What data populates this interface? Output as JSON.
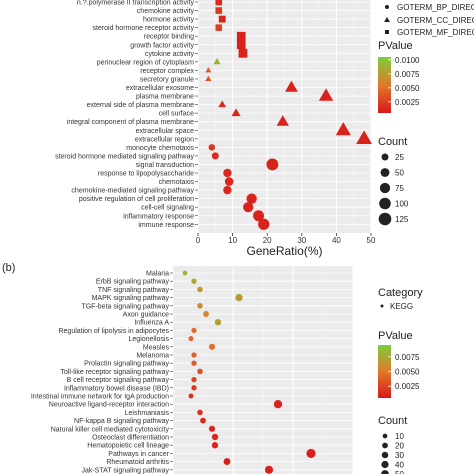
{
  "chart_data": [
    {
      "type": "scatter",
      "panel_label": "",
      "xlabel": "GeneRatio(%)",
      "xlim": [
        0,
        50
      ],
      "xticks": [
        0,
        10,
        20,
        30,
        40,
        50
      ],
      "terms": [
        "n.?.polymerase II transcription activity",
        "chemokine activity",
        "hormone activity",
        "steroid hormone receptor activity",
        "receptor binding",
        "growth factor activity",
        "cytokine activity",
        "perinuclear region of cytoplasm",
        "receptor complex",
        "secretory granule",
        "extracellular exosome",
        "plasma membrane",
        "external side of plasma membrane",
        "cell surface",
        "integral component of plasma membrane",
        "extracellular space",
        "extracellular region",
        "monocyte chemotaxis",
        "steroid hormone mediated signaling pathway",
        "signal transduction",
        "response to lipopolysaccharide",
        "chemotaxis",
        "chemokine-mediated signaling pathway",
        "positive regulation of cell proliferation",
        "cell-cell signaling",
        "inflammatory response",
        "immune response"
      ],
      "points": [
        {
          "x": 6,
          "category": "GOTERM_MF_DIRECT",
          "pvalue": 0.0015,
          "count": 18
        },
        {
          "x": 6,
          "category": "GOTERM_MF_DIRECT",
          "pvalue": 0.002,
          "count": 18
        },
        {
          "x": 7,
          "category": "GOTERM_MF_DIRECT",
          "pvalue": 0.001,
          "count": 20
        },
        {
          "x": 6,
          "category": "GOTERM_MF_DIRECT",
          "pvalue": 0.0025,
          "count": 17
        },
        {
          "x": 12.5,
          "category": "GOTERM_MF_DIRECT",
          "pvalue": 0.001,
          "count": 40
        },
        {
          "x": 12.5,
          "category": "GOTERM_MF_DIRECT",
          "pvalue": 0.001,
          "count": 40
        },
        {
          "x": 13,
          "category": "GOTERM_MF_DIRECT",
          "pvalue": 0.001,
          "count": 42
        },
        {
          "x": 5.5,
          "category": "GOTERM_CC_DIRECT",
          "pvalue": 0.0085,
          "count": 18
        },
        {
          "x": 3,
          "category": "GOTERM_CC_DIRECT",
          "pvalue": 0.004,
          "count": 10
        },
        {
          "x": 3,
          "category": "GOTERM_CC_DIRECT",
          "pvalue": 0.0035,
          "count": 10
        },
        {
          "x": 27,
          "category": "GOTERM_CC_DIRECT",
          "pvalue": 0.001,
          "count": 90
        },
        {
          "x": 37,
          "category": "GOTERM_CC_DIRECT",
          "pvalue": 0.001,
          "count": 120
        },
        {
          "x": 7,
          "category": "GOTERM_CC_DIRECT",
          "pvalue": 0.0015,
          "count": 22
        },
        {
          "x": 11,
          "category": "GOTERM_CC_DIRECT",
          "pvalue": 0.001,
          "count": 35
        },
        {
          "x": 24.5,
          "category": "GOTERM_CC_DIRECT",
          "pvalue": 0.001,
          "count": 80
        },
        {
          "x": 42,
          "category": "GOTERM_CC_DIRECT",
          "pvalue": 0.001,
          "count": 135
        },
        {
          "x": 48,
          "category": "GOTERM_CC_DIRECT",
          "pvalue": 0.001,
          "count": 150
        },
        {
          "x": 4,
          "category": "GOTERM_BP_DIRECT",
          "pvalue": 0.002,
          "count": 12
        },
        {
          "x": 5,
          "category": "GOTERM_BP_DIRECT",
          "pvalue": 0.0015,
          "count": 16
        },
        {
          "x": 21.5,
          "category": "GOTERM_BP_DIRECT",
          "pvalue": 0.001,
          "count": 70
        },
        {
          "x": 8.5,
          "category": "GOTERM_BP_DIRECT",
          "pvalue": 0.0012,
          "count": 27
        },
        {
          "x": 9,
          "category": "GOTERM_BP_DIRECT",
          "pvalue": 0.0012,
          "count": 29
        },
        {
          "x": 8.5,
          "category": "GOTERM_BP_DIRECT",
          "pvalue": 0.0012,
          "count": 27
        },
        {
          "x": 15.5,
          "category": "GOTERM_BP_DIRECT",
          "pvalue": 0.001,
          "count": 50
        },
        {
          "x": 14.5,
          "category": "GOTERM_BP_DIRECT",
          "pvalue": 0.001,
          "count": 47
        },
        {
          "x": 17.5,
          "category": "GOTERM_BP_DIRECT",
          "pvalue": 0.001,
          "count": 57
        },
        {
          "x": 19,
          "category": "GOTERM_BP_DIRECT",
          "pvalue": 0.001,
          "count": 62
        }
      ],
      "legend": {
        "category_entries": [
          "GOTERM_BP_DIRECT",
          "GOTERM_CC_DIRECT",
          "GOTERM_MF_DIRECT"
        ],
        "pvalue_title": "PValue",
        "pvalue_ticks": [
          "0.0100",
          "0.0075",
          "0.0050",
          "0.0025"
        ],
        "pvalue_range": [
          0.0005,
          0.0105
        ],
        "count_title": "Count",
        "count_ticks": [
          25,
          50,
          75,
          100,
          125
        ],
        "placement": "right"
      },
      "grid": true
    },
    {
      "type": "scatter",
      "panel_label": "(b)",
      "xlabel": "",
      "xlim": [
        0,
        30
      ],
      "terms": [
        "Malaria",
        "ErbB signaling pathway",
        "TNF signaling pathway",
        "MAPK signaling pathway",
        "TGF-beta signaling pathway",
        "Axon guidance",
        "Influenza A",
        "Regulation of lipolysis in adipocytes",
        "Legionellosis",
        "Measles",
        "Melanoma",
        "Prolactin signaling pathway",
        "Toll-like receptor signaling pathway",
        "B cell receptor signaling pathway",
        "Inflammatory bowel disease (IBD)",
        "Intestinal immune network for IgA production",
        "Neuroactive ligand-receptor interaction",
        "Leishmaniasis",
        "NF-kappa B signaling pathway",
        "Natural killer cell mediated cytotoxicity",
        "Osteoclast differentiation",
        "Hematopoietic cell lineage",
        "Pathways in cancer",
        "Rheumatoid arthritis",
        "Jak-STAT signaling pathway"
      ],
      "points": [
        {
          "x": 2,
          "pvalue": 0.0085,
          "count": 6
        },
        {
          "x": 3.5,
          "pvalue": 0.0075,
          "count": 10
        },
        {
          "x": 4.5,
          "pvalue": 0.0065,
          "count": 12
        },
        {
          "x": 11,
          "pvalue": 0.0068,
          "count": 30
        },
        {
          "x": 4.5,
          "pvalue": 0.006,
          "count": 12
        },
        {
          "x": 5.5,
          "pvalue": 0.0055,
          "count": 15
        },
        {
          "x": 7.5,
          "pvalue": 0.007,
          "count": 20
        },
        {
          "x": 3.5,
          "pvalue": 0.0045,
          "count": 10
        },
        {
          "x": 3,
          "pvalue": 0.004,
          "count": 8
        },
        {
          "x": 6.5,
          "pvalue": 0.0045,
          "count": 18
        },
        {
          "x": 3.5,
          "pvalue": 0.004,
          "count": 10
        },
        {
          "x": 3.5,
          "pvalue": 0.0035,
          "count": 10
        },
        {
          "x": 4.5,
          "pvalue": 0.003,
          "count": 12
        },
        {
          "x": 3.5,
          "pvalue": 0.0025,
          "count": 10
        },
        {
          "x": 3.5,
          "pvalue": 0.002,
          "count": 10
        },
        {
          "x": 3,
          "pvalue": 0.0015,
          "count": 8
        },
        {
          "x": 17.5,
          "pvalue": 0.001,
          "count": 45
        },
        {
          "x": 4.5,
          "pvalue": 0.0015,
          "count": 12
        },
        {
          "x": 5,
          "pvalue": 0.0012,
          "count": 14
        },
        {
          "x": 6.5,
          "pvalue": 0.0012,
          "count": 18
        },
        {
          "x": 7,
          "pvalue": 0.0011,
          "count": 20
        },
        {
          "x": 7,
          "pvalue": 0.0011,
          "count": 20
        },
        {
          "x": 23,
          "pvalue": 0.0008,
          "count": 60
        },
        {
          "x": 9,
          "pvalue": 0.0008,
          "count": 25
        },
        {
          "x": 16,
          "pvalue": 0.0008,
          "count": 42
        }
      ],
      "legend": {
        "category_title": "Category",
        "category_entries": [
          "KEGG"
        ],
        "pvalue_title": "PValue",
        "pvalue_ticks": [
          "0.0075",
          "0.0050",
          "0.0025"
        ],
        "pvalue_range": [
          0.0005,
          0.0095
        ],
        "count_title": "Count",
        "count_ticks": [
          10,
          20,
          30,
          40,
          50
        ],
        "placement": "right"
      },
      "grid": true
    }
  ]
}
